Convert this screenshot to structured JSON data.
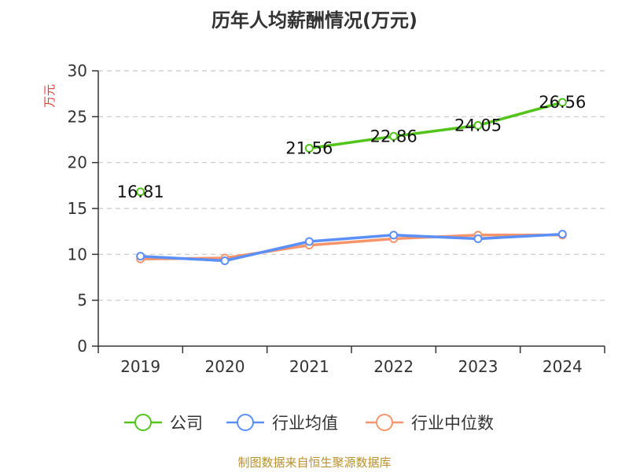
{
  "chart_data": {
    "type": "line",
    "title": "历年人均薪酬情况(万元)",
    "ylabel": "万元",
    "xlabel": "",
    "categories": [
      "2019",
      "2020",
      "2021",
      "2022",
      "2023",
      "2024"
    ],
    "ylim": [
      0,
      30
    ],
    "yticks": [
      0,
      5,
      10,
      15,
      20,
      25,
      30
    ],
    "grid": true,
    "legend_position": "bottom",
    "series": [
      {
        "name": "公司",
        "color": "#52c41a",
        "values": [
          16.81,
          null,
          21.56,
          22.86,
          24.05,
          26.56
        ],
        "labels": [
          "16.81",
          "",
          "21.56",
          "22.86",
          "24.05",
          "26.56"
        ]
      },
      {
        "name": "行业均值",
        "color": "#5b8ff9",
        "values": [
          9.8,
          9.3,
          11.4,
          12.1,
          11.7,
          12.2
        ]
      },
      {
        "name": "行业中位数",
        "color": "#f6956b",
        "values": [
          9.5,
          9.6,
          11.0,
          11.7,
          12.1,
          12.1
        ]
      }
    ]
  },
  "footer": {
    "source": "制图数据来自恒生聚源数据库"
  }
}
